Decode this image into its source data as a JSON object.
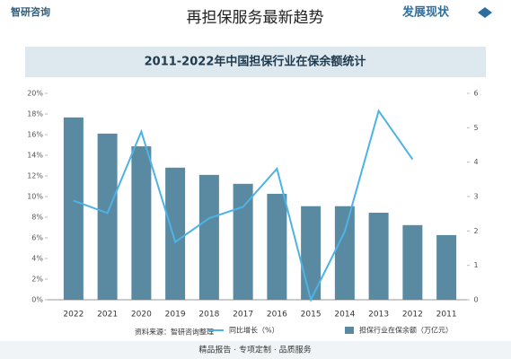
{
  "header": {
    "logo": "智研咨询",
    "overlay_title": "再担保服务最新趋势",
    "section": "发展现状"
  },
  "chart_data": {
    "type": "bar_line",
    "title": "2011-2022年中国担保行业在保余额统计",
    "categories": [
      "2022",
      "2021",
      "2020",
      "2019",
      "2018",
      "2017",
      "2016",
      "2015",
      "2014",
      "2013",
      "2012",
      "2011"
    ],
    "series": [
      {
        "name": "担保行业在保余额（万亿元）",
        "color": "#5a8aa2",
        "axis": "y2",
        "values": [
          5.3,
          4.83,
          4.46,
          3.84,
          3.63,
          3.37,
          3.08,
          2.72,
          2.72,
          2.53,
          2.17,
          1.88
        ]
      },
      {
        "name": "同比增长（%）",
        "color": "#4db3e6",
        "axis": "y",
        "values": [
          9.6,
          8.4,
          16.3,
          5.6,
          7.9,
          9.0,
          12.7,
          0,
          6.6,
          18.3,
          13.6,
          null
        ]
      }
    ],
    "ylim": [
      0,
      20
    ],
    "yticks": [
      {
        "value": 0,
        "label": "0%"
      },
      {
        "value": 2,
        "label": "2%"
      },
      {
        "value": 4,
        "label": "4%"
      },
      {
        "value": 6,
        "label": "6%"
      },
      {
        "value": 8,
        "label": "8%"
      },
      {
        "value": 10,
        "label": "10%"
      },
      {
        "value": 12,
        "label": "12%"
      },
      {
        "value": 14,
        "label": "14%"
      },
      {
        "value": 16,
        "label": "16%"
      },
      {
        "value": 18,
        "label": "18%"
      },
      {
        "value": 20,
        "label": "20%"
      }
    ],
    "y2lim": [
      0,
      6
    ],
    "y2ticks": [
      0,
      1,
      2,
      3,
      4,
      5,
      6
    ],
    "source": "资料来源：智研咨询整理"
  },
  "footer": "精品报告 · 专项定制 · 品质服务"
}
